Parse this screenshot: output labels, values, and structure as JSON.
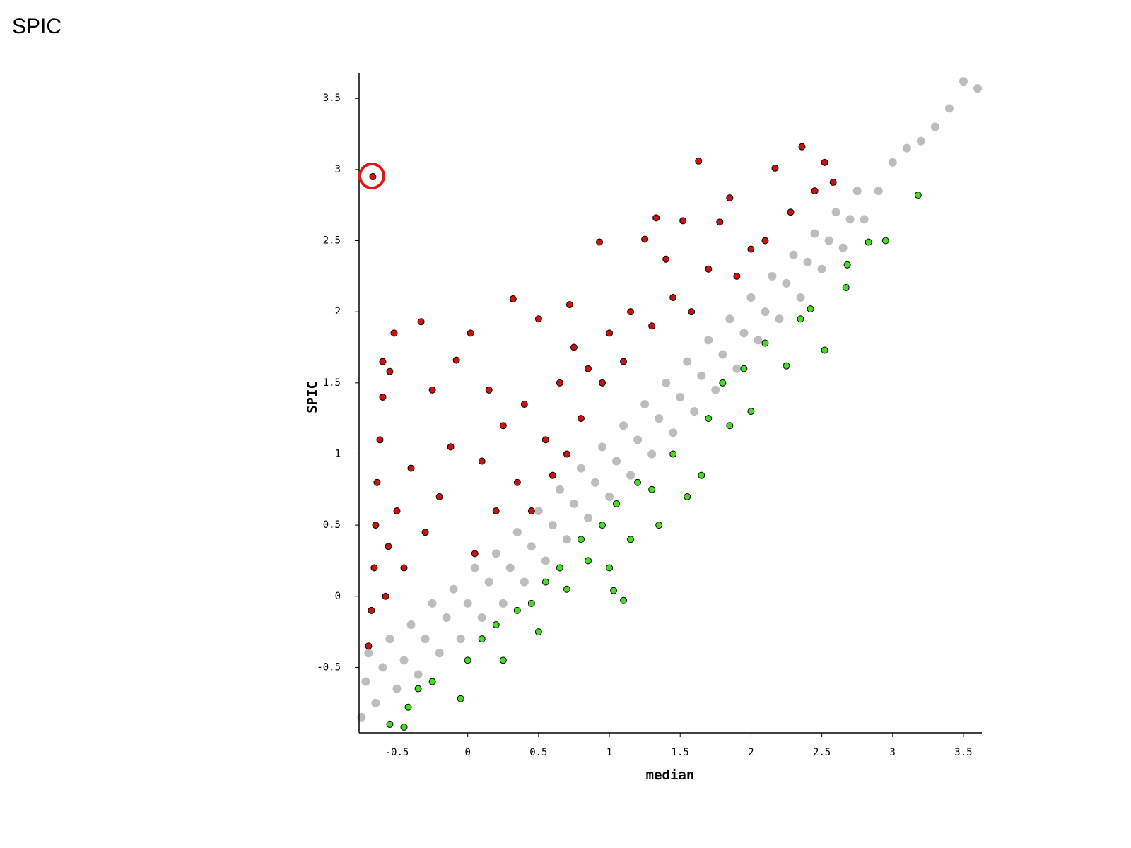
{
  "chart_data": {
    "type": "scatter",
    "title": "SPIC",
    "x_label": "median",
    "y_label": "SPIC",
    "xlim": [
      -0.767,
      3.63
    ],
    "ylim": [
      -0.96,
      3.68
    ],
    "xticks": [
      -0.5,
      0,
      0.5,
      1,
      1.5,
      2,
      2.5,
      3,
      3.5
    ],
    "yticks": [
      -0.5,
      0,
      0.5,
      1,
      1.5,
      2,
      2.5,
      3,
      3.5
    ],
    "series": [
      {
        "color": "#bdbdbd",
        "x": [
          -0.75,
          -0.72,
          -0.7,
          -0.65,
          -0.6,
          -0.55,
          -0.5,
          -0.45,
          -0.4,
          -0.35,
          -0.3,
          -0.25,
          -0.2,
          -0.15,
          -0.1,
          -0.05,
          0,
          0.05,
          0.1,
          0.15,
          0.2,
          0.25,
          0.3,
          0.35,
          0.4,
          0.45,
          0.5,
          0.55,
          0.6,
          0.65,
          0.7,
          0.75,
          0.8,
          0.85,
          0.9,
          0.95,
          1,
          1.05,
          1.1,
          1.15,
          1.2,
          1.25,
          1.3,
          1.35,
          1.4,
          1.45,
          1.5,
          1.55,
          1.6,
          1.65,
          1.7,
          1.75,
          1.8,
          1.85,
          1.9,
          1.95,
          2,
          2.05,
          2.1,
          2.15,
          2.2,
          2.25,
          2.3,
          2.35,
          2.4,
          2.45,
          2.5,
          2.55,
          2.6,
          2.65,
          2.7,
          2.75,
          2.8,
          2.9,
          3.0,
          3.1,
          3.2,
          3.3,
          3.4,
          3.5,
          3.6
        ],
        "values": [
          -0.85,
          -0.6,
          -0.4,
          -0.75,
          -0.5,
          -0.3,
          -0.65,
          -0.45,
          -0.2,
          -0.55,
          -0.3,
          -0.05,
          -0.4,
          -0.15,
          0.05,
          -0.3,
          -0.05,
          0.2,
          -0.15,
          0.1,
          0.3,
          -0.05,
          0.2,
          0.45,
          0.1,
          0.35,
          0.6,
          0.25,
          0.5,
          0.75,
          0.4,
          0.65,
          0.9,
          0.55,
          0.8,
          1.05,
          0.7,
          0.95,
          1.2,
          0.85,
          1.1,
          1.35,
          1.0,
          1.25,
          1.5,
          1.15,
          1.4,
          1.65,
          1.3,
          1.55,
          1.8,
          1.45,
          1.7,
          1.95,
          1.6,
          1.85,
          2.1,
          1.8,
          2.0,
          2.25,
          1.95,
          2.2,
          2.4,
          2.1,
          2.35,
          2.55,
          2.3,
          2.5,
          2.7,
          2.45,
          2.65,
          2.85,
          2.65,
          2.85,
          3.05,
          3.15,
          3.2,
          3.3,
          3.43,
          3.62,
          3.57
        ]
      },
      {
        "color": "#cc1111",
        "edgecolor": "#000000",
        "x": [
          -0.7,
          -0.68,
          -0.66,
          -0.65,
          -0.64,
          -0.62,
          -0.6,
          -0.6,
          -0.58,
          -0.56,
          -0.55,
          -0.52,
          -0.5,
          -0.45,
          -0.4,
          -0.33,
          -0.3,
          -0.25,
          -0.2,
          -0.12,
          -0.08,
          0.02,
          0.05,
          0.1,
          0.2,
          0.25,
          0.32,
          0.35,
          0.4,
          0.45,
          0.5,
          0.55,
          0.6,
          0.65,
          0.7,
          0.75,
          0.8,
          0.85,
          0.93,
          0.95,
          1.0,
          1.1,
          1.15,
          1.25,
          1.3,
          1.33,
          1.45,
          1.52,
          1.58,
          1.63,
          1.7,
          1.78,
          1.85,
          1.9,
          2.0,
          2.1,
          2.17,
          2.28,
          2.36,
          2.45,
          2.52,
          2.58,
          -0.67,
          0.72,
          1.4,
          0.15
        ],
        "values": [
          -0.35,
          -0.1,
          0.2,
          0.5,
          0.8,
          1.1,
          1.4,
          1.65,
          0.0,
          0.35,
          1.58,
          1.85,
          0.6,
          0.2,
          0.9,
          1.93,
          0.45,
          1.45,
          0.7,
          1.05,
          1.66,
          1.85,
          0.3,
          0.95,
          0.6,
          1.2,
          2.09,
          0.8,
          1.35,
          0.6,
          1.95,
          1.1,
          0.85,
          1.5,
          1.0,
          1.75,
          1.25,
          1.6,
          2.49,
          1.5,
          1.85,
          1.65,
          2.0,
          2.51,
          1.9,
          2.66,
          2.1,
          2.64,
          2.0,
          3.06,
          2.3,
          2.63,
          2.8,
          2.25,
          2.44,
          2.5,
          3.01,
          2.7,
          3.16,
          2.85,
          3.05,
          2.91,
          2.95,
          2.05,
          2.37,
          1.45
        ]
      },
      {
        "color": "#44dd22",
        "edgecolor": "#000000",
        "x": [
          -0.55,
          -0.45,
          -0.42,
          -0.35,
          -0.25,
          -0.05,
          0,
          0.1,
          0.2,
          0.25,
          0.35,
          0.45,
          0.5,
          0.55,
          0.65,
          0.7,
          0.8,
          0.85,
          0.95,
          1.0,
          1.05,
          1.1,
          1.15,
          1.2,
          1.3,
          1.35,
          1.45,
          1.55,
          1.65,
          1.7,
          1.8,
          1.85,
          1.95,
          2.0,
          2.1,
          2.25,
          2.35,
          2.42,
          2.52,
          2.67,
          2.68,
          2.83,
          2.95,
          3.18,
          1.03
        ],
        "values": [
          -0.9,
          -0.92,
          -0.78,
          -0.65,
          -0.6,
          -0.72,
          -0.45,
          -0.3,
          -0.2,
          -0.45,
          -0.1,
          -0.05,
          -0.25,
          0.1,
          0.2,
          0.05,
          0.4,
          0.25,
          0.5,
          0.2,
          0.65,
          -0.03,
          0.4,
          0.8,
          0.75,
          0.5,
          1.0,
          0.7,
          0.85,
          1.25,
          1.5,
          1.2,
          1.6,
          1.3,
          1.78,
          1.62,
          1.95,
          2.02,
          1.73,
          2.17,
          2.33,
          2.49,
          2.5,
          2.82,
          0.04
        ]
      }
    ]
  }
}
